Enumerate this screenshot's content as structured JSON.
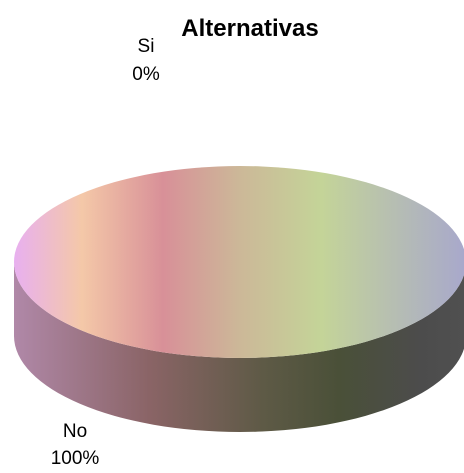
{
  "chart_data": {
    "type": "pie",
    "title": "Alternativas",
    "categories": [
      "Si",
      "No"
    ],
    "values": [
      0,
      100
    ],
    "data_labels": [
      {
        "category": "Si",
        "percent": "0%"
      },
      {
        "category": "No",
        "percent": "100%"
      }
    ],
    "three_d": true,
    "legend": "none",
    "colors": {
      "no_slice_gradient": [
        "#e8b0f0",
        "#f4c8a8",
        "#d89098",
        "#ccb898",
        "#c4d498",
        "#a8a8cc"
      ],
      "side_gradient": [
        "#b088a8",
        "#8a6466",
        "#5e5a46",
        "#4a5038",
        "#4c4c4c",
        "#505050"
      ]
    }
  }
}
